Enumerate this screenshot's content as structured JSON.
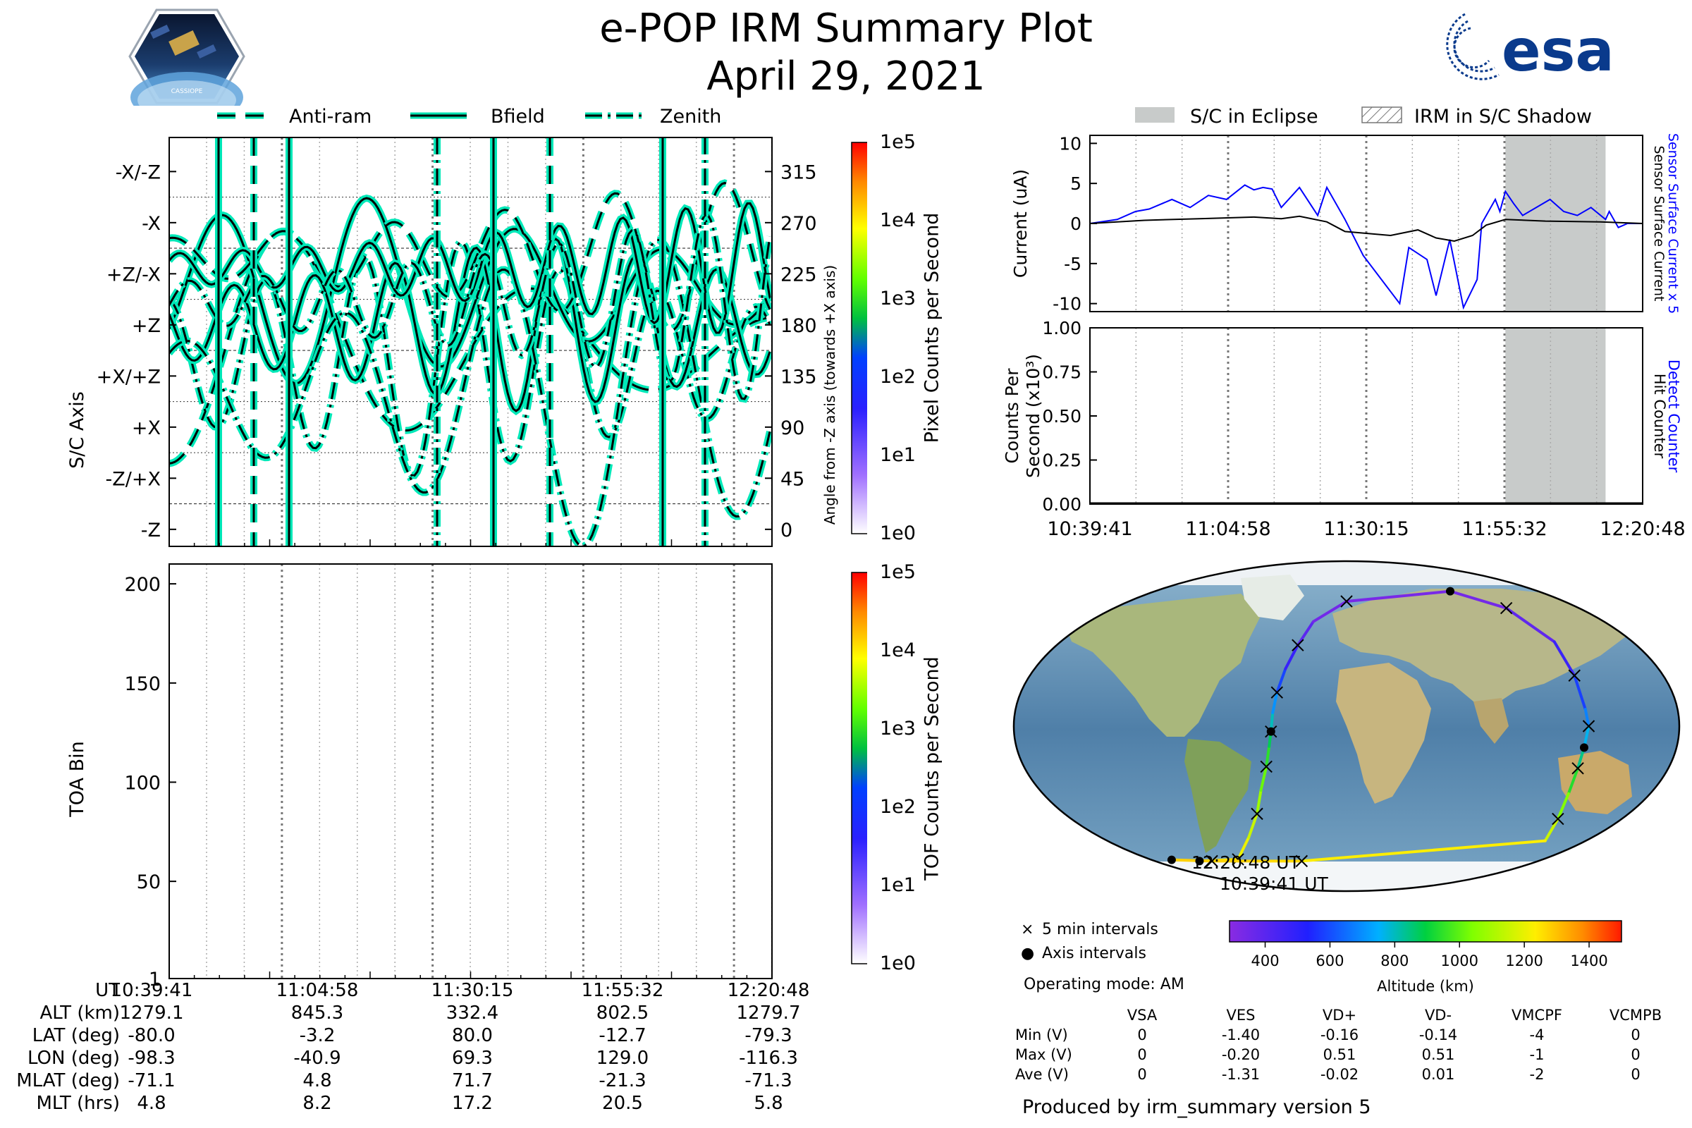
{
  "header": {
    "title": "e-POP IRM Summary Plot",
    "date": "April 29, 2021",
    "logo_cassiope_text": "CASSIOPE",
    "logo_esa_text": "esa"
  },
  "legend_top": [
    "Anti-ram",
    "Bfield",
    "Zenith"
  ],
  "legend_right": [
    "S/C in Eclipse",
    "IRM in S/C Shadow"
  ],
  "chart_data": [
    {
      "id": "sc_axis_panel",
      "type": "line",
      "ylabel": "S/C Axis",
      "ylabel_right": "Angle from -Z axis (towards +X axis)",
      "ylim": [
        -15,
        345
      ],
      "yticks_left": [
        "-X/-Z",
        "-X",
        "+Z/-X",
        "+Z",
        "+X/+Z",
        "+X",
        "-Z/+X",
        "-Z"
      ],
      "yticks_right": [
        315,
        270,
        225,
        180,
        135,
        90,
        45,
        0
      ],
      "series": [
        {
          "name": "Anti-ram",
          "style": "dashed"
        },
        {
          "name": "Bfield",
          "style": "solid"
        },
        {
          "name": "Zenith",
          "style": "dashdot"
        }
      ],
      "colorbar": {
        "label": "Pixel Counts per Second",
        "ticks": [
          "1e0",
          "1e1",
          "1e2",
          "1e3",
          "1e4",
          "1e5"
        ]
      }
    },
    {
      "id": "toa_panel",
      "type": "heatmap",
      "ylabel": "TOA Bin",
      "ylim": [
        1,
        210
      ],
      "yticks": [
        1,
        50,
        100,
        150,
        200
      ],
      "colorbar": {
        "label": "TOF Counts per Second",
        "ticks": [
          "1e0",
          "1e1",
          "1e2",
          "1e3",
          "1e4",
          "1e5"
        ]
      }
    },
    {
      "id": "current_panel",
      "type": "line",
      "ylabel": "Current (uA)",
      "ylim": [
        -11,
        11
      ],
      "yticks": [
        10,
        5,
        0,
        -5,
        -10
      ],
      "right_labels": [
        "Sensor Surface Current x 5",
        "Sensor Surface Current"
      ],
      "eclipse_range_seconds": [
        4560,
        5660
      ],
      "series": [
        {
          "name": "Sensor Surface Current x 5",
          "color": "#0000ff",
          "t": [
            0,
            300,
            500,
            650,
            900,
            1100,
            1300,
            1500,
            1700,
            1800,
            1900,
            2000,
            2100,
            2300,
            2500,
            2600,
            2800,
            3000,
            3200,
            3400,
            3500,
            3700,
            3800,
            3950,
            4100,
            4250,
            4300,
            4450,
            4500,
            4560,
            4650,
            4750,
            4900,
            5050,
            5200,
            5350,
            5500,
            5660,
            5700,
            5800,
            5900,
            6067
          ],
          "v": [
            0,
            0.5,
            1.5,
            1.8,
            3.0,
            2.0,
            3.5,
            3.0,
            4.8,
            4.2,
            4.5,
            4.3,
            2.0,
            4.5,
            1.0,
            4.5,
            0.5,
            -4.0,
            -7.0,
            -10.0,
            -3.0,
            -4.5,
            -9.0,
            -2.0,
            -10.5,
            -7.0,
            0.0,
            3.0,
            1.5,
            4.0,
            2.5,
            1.0,
            2.0,
            3.0,
            1.5,
            1.0,
            2.0,
            0.5,
            1.5,
            -0.5,
            0.0,
            0.0
          ]
        },
        {
          "name": "Sensor Surface Current",
          "color": "#000000",
          "t": [
            0,
            600,
            1200,
            1800,
            2100,
            2300,
            2600,
            2800,
            3000,
            3300,
            3600,
            3800,
            4000,
            4200,
            4350,
            4560,
            5000,
            5600,
            6067
          ],
          "v": [
            0,
            0.4,
            0.6,
            0.8,
            0.6,
            0.9,
            0.2,
            -1.0,
            -1.2,
            -1.5,
            -0.8,
            -1.8,
            -2.2,
            -1.5,
            -0.2,
            0.5,
            0.3,
            0.2,
            0.0
          ]
        }
      ]
    },
    {
      "id": "counter_panel",
      "type": "line",
      "ylabel": "Counts Per Second (x10³)",
      "ylim": [
        0,
        1.0
      ],
      "yticks": [
        "0.00",
        "0.25",
        "0.50",
        "0.75",
        "1.00"
      ],
      "right_labels": [
        "Detect Counter",
        "Hit Counter"
      ],
      "series": [
        {
          "name": "Detect Counter",
          "color": "#0000ff",
          "t": [
            0,
            6067
          ],
          "v": [
            0,
            0
          ]
        },
        {
          "name": "Hit Counter",
          "color": "#000000",
          "t": [
            0,
            6067
          ],
          "v": [
            0,
            0
          ]
        }
      ]
    },
    {
      "id": "ground_track",
      "type": "scatter",
      "colorbar": {
        "label": "Altitude (km)",
        "ticks": [
          400,
          600,
          800,
          1000,
          1200,
          1400
        ],
        "range": [
          290,
          1500
        ]
      },
      "annotations": [
        "12:20:48 UT",
        "10:39:41 UT"
      ],
      "legend": [
        "5 min intervals",
        "Axis intervals"
      ],
      "track_lon": [
        -98.3,
        -72,
        -60,
        -52,
        -48,
        -44,
        -42,
        -40.9,
        -40,
        -38,
        -34,
        -28,
        -20,
        0,
        69.3,
        100,
        120,
        126,
        129.5,
        131,
        129.0,
        127,
        125,
        124,
        123,
        -30,
        -60,
        -90,
        -116.3
      ],
      "track_lat": [
        -80,
        -79,
        -66,
        -52,
        -38,
        -24,
        -12,
        -3.2,
        8,
        20,
        34,
        48,
        62,
        74,
        80,
        70,
        50,
        30,
        10,
        0,
        -12.7,
        -25,
        -40,
        -55,
        -68,
        -80,
        -80,
        -80,
        -79.3
      ],
      "track_alt": [
        1279.1,
        1230,
        1180,
        1120,
        1050,
        980,
        910,
        845.3,
        760,
        650,
        530,
        430,
        360,
        330,
        332.4,
        350,
        420,
        520,
        640,
        720,
        802.5,
        880,
        990,
        1100,
        1200,
        1260,
        1270,
        1275,
        1279.7
      ]
    }
  ],
  "time_ticks": [
    "10:39:41",
    "11:04:58",
    "11:30:15",
    "11:55:32",
    "12:20:48"
  ],
  "ephemeris": {
    "labels": [
      "UT",
      "ALT (km)",
      "LAT (deg)",
      "LON (deg)",
      "MLAT (deg)",
      "MLT (hrs)"
    ],
    "rows": [
      [
        "10:39:41",
        "11:04:58",
        "11:30:15",
        "11:55:32",
        "12:20:48"
      ],
      [
        "1279.1",
        "845.3",
        "332.4",
        "802.5",
        "1279.7"
      ],
      [
        "-80.0",
        "-3.2",
        "80.0",
        "-12.7",
        "-79.3"
      ],
      [
        "-98.3",
        "-40.9",
        "69.3",
        "129.0",
        "-116.3"
      ],
      [
        "-71.1",
        "4.8",
        "71.7",
        "-21.3",
        "-71.3"
      ],
      [
        "4.8",
        "8.2",
        "17.2",
        "20.5",
        "5.8"
      ]
    ]
  },
  "operating_mode": "Operating mode: AM",
  "voltages": {
    "headers": [
      "VSA",
      "VES",
      "VD+",
      "VD-",
      "VMCPF",
      "VCMPB"
    ],
    "rows": [
      {
        "label": "Min (V)",
        "values": [
          "0",
          "-1.40",
          "-0.16",
          "-0.14",
          "-4",
          "0"
        ]
      },
      {
        "label": "Max (V)",
        "values": [
          "0",
          "-0.20",
          "0.51",
          "0.51",
          "-1",
          "0"
        ]
      },
      {
        "label": "Ave (V)",
        "values": [
          "0",
          "-1.31",
          "-0.02",
          "0.01",
          "-2",
          "0"
        ]
      }
    ]
  },
  "footer": "Produced by irm_summary version 5"
}
